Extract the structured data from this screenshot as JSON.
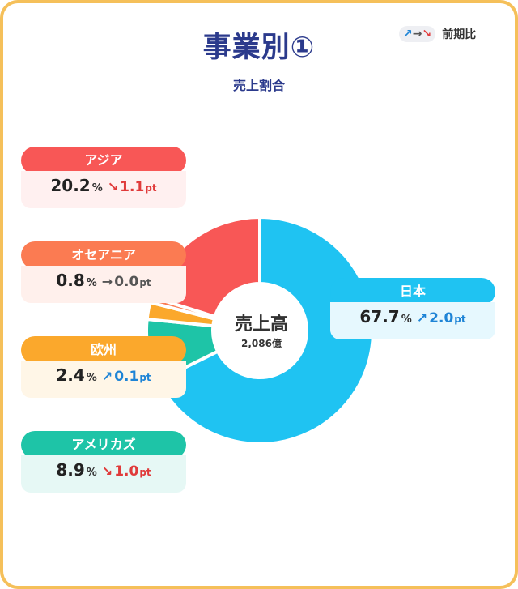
{
  "header": {
    "title": "事業別①",
    "subtitle": "売上割合",
    "legend_arrows": {
      "up": "↗",
      "sep": "→",
      "down": "↘"
    },
    "legend_label": "前期比"
  },
  "chart_data": {
    "type": "pie",
    "title": "事業別①",
    "subtitle": "売上割合",
    "center_label": "売上高",
    "center_value": "2,086億",
    "value_unit": "%",
    "change_unit": "pt",
    "segments": [
      {
        "name": "日本",
        "share": 67.7,
        "share_label": "67.7",
        "direction": "up",
        "arrow": "↗",
        "change": "2.0",
        "color": "#1fc3f2",
        "body_color": "#e6f8fe",
        "side": "right"
      },
      {
        "name": "アメリカズ",
        "share": 8.9,
        "share_label": "8.9",
        "direction": "down",
        "arrow": "↘",
        "change": "1.0",
        "color": "#1ec4a7",
        "body_color": "#e6f8f5",
        "side": "left"
      },
      {
        "name": "欧州",
        "share": 2.4,
        "share_label": "2.4",
        "direction": "up",
        "arrow": "↗",
        "change": "0.1",
        "color": "#fba82c",
        "body_color": "#fff6e7",
        "side": "left"
      },
      {
        "name": "オセアニア",
        "share": 0.8,
        "share_label": "0.8",
        "direction": "flat",
        "arrow": "→",
        "change": "0.0",
        "color": "#fb7b52",
        "body_color": "#fff0ec",
        "side": "left"
      },
      {
        "name": "アジア",
        "share": 20.2,
        "share_label": "20.2",
        "direction": "down",
        "arrow": "↘",
        "change": "1.1",
        "color": "#f85756",
        "body_color": "#fff0f0",
        "side": "left"
      }
    ]
  }
}
